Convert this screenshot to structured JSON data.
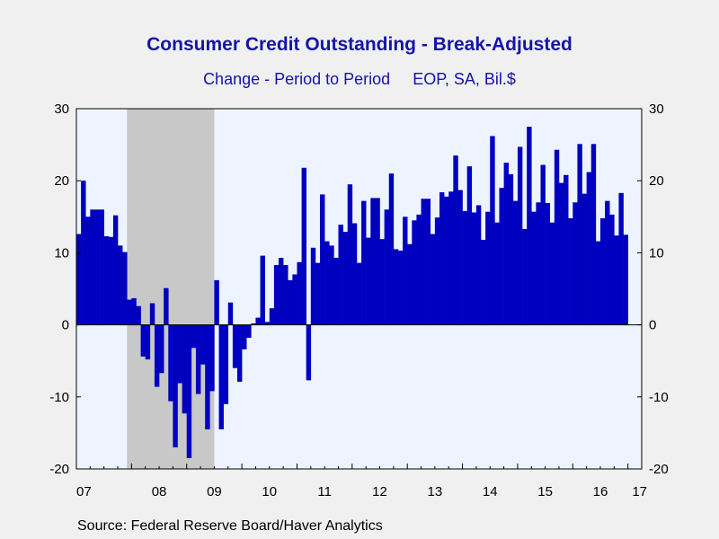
{
  "chart_data": {
    "type": "bar",
    "title": "Consumer Credit Outstanding - Break-Adjusted",
    "subtitle": "Change - Period to Period     EOP, SA, Bil.$",
    "source": "Source:  Federal Reserve Board/Haver Analytics",
    "ylim": [
      -20,
      30
    ],
    "yticks": [
      30,
      20,
      10,
      0,
      -10,
      -20
    ],
    "x_range": [
      "2007-01",
      "2017-03"
    ],
    "xtick_labels": [
      "07",
      "08",
      "09",
      "10",
      "11",
      "12",
      "13",
      "14",
      "15",
      "16",
      "17"
    ],
    "recession_shading": {
      "start": "2007-12",
      "end": "2009-06"
    },
    "bar_color": "#0000c0",
    "shade_color": "#c8c8c8",
    "plot_background": "#eef4ff",
    "grid": false,
    "series": [
      {
        "values": [
          12.6,
          20.0,
          15.0,
          16.0,
          16.0,
          16.0,
          12.3,
          12.2,
          15.2,
          11.0,
          10.1,
          3.5,
          3.7,
          2.6,
          -4.4,
          -4.8,
          3.0,
          -8.6,
          -6.7,
          5.1,
          -10.6,
          -17.0,
          -8.1,
          -12.3,
          -18.5,
          -3.2,
          -9.6,
          -5.5,
          -14.5,
          -9.2,
          6.2,
          -14.5,
          -11.0,
          3.1,
          -6.0,
          -7.9,
          -3.4,
          -1.8,
          0.2,
          1.0,
          9.6,
          0.4,
          2.3,
          8.3,
          9.3,
          8.3,
          6.2,
          7.0,
          8.7,
          21.8,
          -7.7,
          10.7,
          8.6,
          18.1,
          11.6,
          11.0,
          9.3,
          13.9,
          12.9,
          19.5,
          14.1,
          8.6,
          17.2,
          12.1,
          17.6,
          17.6,
          11.9,
          16.0,
          21.0,
          10.5,
          10.3,
          15.0,
          11.2,
          14.5,
          15.3,
          17.5,
          17.5,
          12.6,
          14.9,
          18.4,
          17.8,
          18.5,
          23.5,
          18.7,
          15.8,
          22.0,
          15.6,
          16.6,
          11.8,
          15.7,
          26.2,
          14.2,
          19.0,
          22.5,
          20.9,
          17.2,
          24.7,
          13.3,
          27.5,
          15.7,
          17.0,
          22.2,
          16.9,
          14.2,
          24.3,
          19.7,
          20.8,
          14.8,
          17.0,
          25.1,
          18.2,
          21.2,
          25.1,
          11.6,
          14.8,
          17.2,
          15.3,
          12.4,
          18.3,
          12.5
        ]
      }
    ]
  }
}
